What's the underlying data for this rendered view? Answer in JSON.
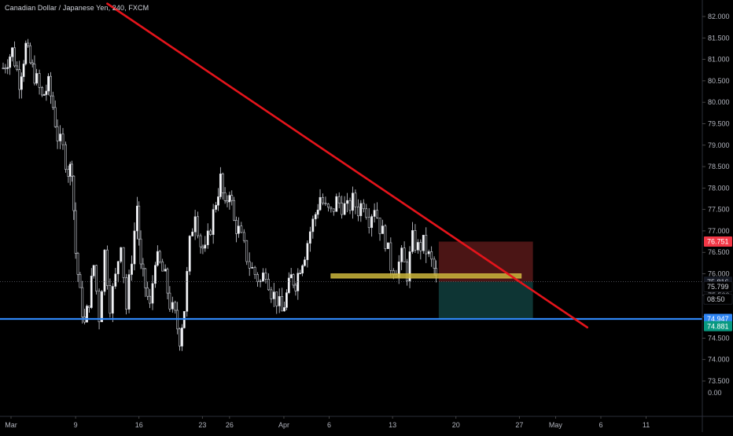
{
  "chart_data": {
    "type": "candlestick",
    "title": "Canadian Dollar / Japanese Yen, 240, FXCM",
    "x_ticks": [
      "Mar",
      "9",
      "16",
      "23",
      "26",
      "Apr",
      "6",
      "13",
      "20",
      "27",
      "May",
      "6",
      "11"
    ],
    "x_tick_positions_days": [
      0,
      8,
      15,
      22,
      25,
      31,
      36,
      43,
      50,
      57,
      61,
      66,
      71
    ],
    "y_ticks": [
      "82.000",
      "81.500",
      "81.000",
      "80.500",
      "80.000",
      "79.500",
      "79.000",
      "78.500",
      "78.000",
      "77.500",
      "77.000",
      "76.500",
      "76.000",
      "75.500",
      "75.000",
      "74.500",
      "74.000",
      "73.500"
    ],
    "y_zero_label": "0.00",
    "ylim": [
      73.0,
      82.2
    ],
    "xlim": [
      0,
      76
    ],
    "grid": false,
    "legend": "none",
    "price_path": [
      [
        0,
        80.8
      ],
      [
        1,
        81.2
      ],
      [
        1.8,
        80.5
      ],
      [
        2.5,
        81.3
      ],
      [
        3,
        80.9
      ],
      [
        3.7,
        80.5
      ],
      [
        4.3,
        80.1
      ],
      [
        5,
        80.4
      ],
      [
        5.5,
        79.9
      ],
      [
        6,
        79.2
      ],
      [
        6.6,
        78.9
      ],
      [
        7.2,
        78.4
      ],
      [
        7.6,
        78.5
      ],
      [
        8,
        76.5
      ],
      [
        8.5,
        75.5
      ],
      [
        9,
        74.8
      ],
      [
        9.5,
        75.4
      ],
      [
        10,
        76.2
      ],
      [
        10.6,
        75.0
      ],
      [
        11.2,
        76.5
      ],
      [
        11.8,
        75.3
      ],
      [
        12.4,
        75.9
      ],
      [
        13,
        76.8
      ],
      [
        13.6,
        75.2
      ],
      [
        14.2,
        76.4
      ],
      [
        14.8,
        77.6
      ],
      [
        15.2,
        76.1
      ],
      [
        15.7,
        75.7
      ],
      [
        16.2,
        75.2
      ],
      [
        16.8,
        76.4
      ],
      [
        17.3,
        76.2
      ],
      [
        17.9,
        75.9
      ],
      [
        18.4,
        75.3
      ],
      [
        19,
        75.0
      ],
      [
        19.5,
        74.5
      ],
      [
        20,
        75.2
      ],
      [
        20.6,
        76.7
      ],
      [
        21.2,
        77.5
      ],
      [
        21.8,
        76.7
      ],
      [
        22.3,
        76.5
      ],
      [
        22.9,
        77.1
      ],
      [
        23.5,
        77.7
      ],
      [
        24,
        78.2
      ],
      [
        24.5,
        77.5
      ],
      [
        25,
        78.0
      ],
      [
        25.5,
        77.2
      ],
      [
        26,
        77.0
      ],
      [
        26.6,
        76.6
      ],
      [
        27.2,
        76.2
      ],
      [
        27.8,
        76.0
      ],
      [
        28.4,
        75.8
      ],
      [
        29,
        76.1
      ],
      [
        29.6,
        75.6
      ],
      [
        30.2,
        75.4
      ],
      [
        30.8,
        75.1
      ],
      [
        31.3,
        75.5
      ],
      [
        31.8,
        75.9
      ],
      [
        32.3,
        75.8
      ],
      [
        32.8,
        76.2
      ],
      [
        33.3,
        76.5
      ],
      [
        33.9,
        77.0
      ],
      [
        34.5,
        77.4
      ],
      [
        35,
        77.8
      ],
      [
        35.6,
        77.5
      ],
      [
        36.2,
        77.4
      ],
      [
        36.8,
        77.7
      ],
      [
        37.4,
        77.6
      ],
      [
        38,
        77.5
      ],
      [
        38.6,
        77.7
      ],
      [
        39.2,
        77.5
      ],
      [
        39.8,
        77.7
      ],
      [
        40.4,
        77.3
      ],
      [
        41,
        77.6
      ],
      [
        41.6,
        77.1
      ],
      [
        42.2,
        76.8
      ],
      [
        42.8,
        76.2
      ],
      [
        43.4,
        76.1
      ],
      [
        44,
        76.4
      ],
      [
        44.6,
        76.0
      ],
      [
        45.2,
        76.8
      ],
      [
        45.8,
        76.6
      ],
      [
        46.4,
        76.7
      ],
      [
        47,
        76.4
      ],
      [
        47.6,
        76.1
      ],
      [
        48,
        75.6
      ]
    ],
    "annotations": {
      "trendline": {
        "color": "#e4141b",
        "start": [
          11.5,
          82.3
        ],
        "end": [
          64.5,
          74.75
        ]
      },
      "support_line": {
        "color": "#2f86f5",
        "value": 74.947
      },
      "resistance_zone": {
        "color": "#c9b53a",
        "x_start": 36.2,
        "x_end": 57.2,
        "y_low": 75.9,
        "y_high": 76.0
      },
      "stop_zone": {
        "color": "#5e1a1a",
        "x_start": 48.1,
        "x_end": 58.5,
        "y_low": 75.816,
        "y_high": 76.751
      },
      "target_zone": {
        "color": "#0f3b3a",
        "x_start": 48.1,
        "x_end": 58.5,
        "y_low": 74.947,
        "y_high": 75.816
      },
      "dotted_price_line": {
        "color": "#787b86",
        "value": 75.816
      }
    },
    "price_tags": [
      {
        "label": "76.751",
        "value": 76.751,
        "bg": "#f23645",
        "fg": "#ffffff"
      },
      {
        "label": "75.816",
        "value": 75.816,
        "bg": "#131722",
        "fg": "#d1d4dc"
      },
      {
        "label": "75.799",
        "value": 75.7,
        "bg": "#000000",
        "fg": "#d1d4dc"
      },
      {
        "label": "08:50",
        "value": 75.41,
        "bg": "#000000",
        "fg": "#d1d4dc"
      },
      {
        "label": "74.947",
        "value": 74.947,
        "bg": "#2f86f5",
        "fg": "#ffffff"
      },
      {
        "label": "74.881",
        "value": 74.78,
        "bg": "#089981",
        "fg": "#ffffff"
      }
    ]
  }
}
